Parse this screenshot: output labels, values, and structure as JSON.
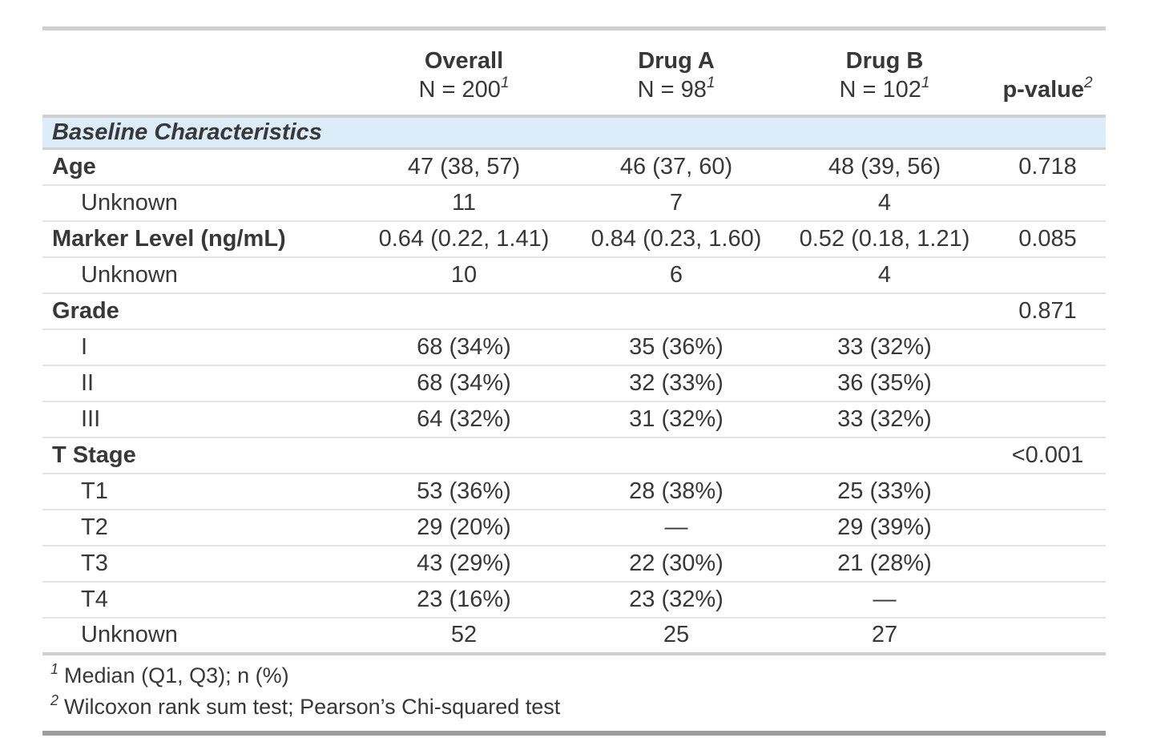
{
  "colors": {
    "text": "#383838",
    "border_light": "#e4e4e4",
    "border_mid": "#d0d0d0",
    "border_dark": "#9d9d9d",
    "group_row_bg": "#ddecf9"
  },
  "table": {
    "header": {
      "columns": [
        {
          "label": "",
          "sublabel": "",
          "footnote_mark": ""
        },
        {
          "label": "Overall",
          "sublabel": "N = 200",
          "footnote_mark": "1"
        },
        {
          "label": "Drug A",
          "sublabel": "N = 98",
          "footnote_mark": "1"
        },
        {
          "label": "Drug B",
          "sublabel": "N = 102",
          "footnote_mark": "1"
        },
        {
          "label": "p-value",
          "sublabel": "",
          "footnote_mark": "2"
        }
      ]
    },
    "group_label": "Baseline Characteristics",
    "rows": [
      {
        "label": "Age",
        "bold": true,
        "indent": false,
        "values": [
          "47 (38, 57)",
          "46 (37, 60)",
          "48 (39, 56)",
          "0.718"
        ]
      },
      {
        "label": "Unknown",
        "bold": false,
        "indent": true,
        "values": [
          "11",
          "7",
          "4",
          ""
        ]
      },
      {
        "label": "Marker Level (ng/mL)",
        "bold": true,
        "indent": false,
        "values": [
          "0.64 (0.22, 1.41)",
          "0.84 (0.23, 1.60)",
          "0.52 (0.18, 1.21)",
          "0.085"
        ]
      },
      {
        "label": "Unknown",
        "bold": false,
        "indent": true,
        "values": [
          "10",
          "6",
          "4",
          ""
        ]
      },
      {
        "label": "Grade",
        "bold": true,
        "indent": false,
        "values": [
          "",
          "",
          "",
          "0.871"
        ]
      },
      {
        "label": "I",
        "bold": false,
        "indent": true,
        "values": [
          "68 (34%)",
          "35 (36%)",
          "33 (32%)",
          ""
        ]
      },
      {
        "label": "II",
        "bold": false,
        "indent": true,
        "values": [
          "68 (34%)",
          "32 (33%)",
          "36 (35%)",
          ""
        ]
      },
      {
        "label": "III",
        "bold": false,
        "indent": true,
        "values": [
          "64 (32%)",
          "31 (32%)",
          "33 (32%)",
          ""
        ]
      },
      {
        "label": "T Stage",
        "bold": true,
        "indent": false,
        "values": [
          "",
          "",
          "",
          "<0.001"
        ]
      },
      {
        "label": "T1",
        "bold": false,
        "indent": true,
        "values": [
          "53 (36%)",
          "28 (38%)",
          "25 (33%)",
          ""
        ]
      },
      {
        "label": "T2",
        "bold": false,
        "indent": true,
        "values": [
          "29 (20%)",
          "—",
          "29 (39%)",
          ""
        ]
      },
      {
        "label": "T3",
        "bold": false,
        "indent": true,
        "values": [
          "43 (29%)",
          "22 (30%)",
          "21 (28%)",
          ""
        ]
      },
      {
        "label": "T4",
        "bold": false,
        "indent": true,
        "values": [
          "23 (16%)",
          "23 (32%)",
          "—",
          ""
        ]
      },
      {
        "label": "Unknown",
        "bold": false,
        "indent": true,
        "values": [
          "52",
          "25",
          "27",
          ""
        ]
      }
    ],
    "footnotes": [
      {
        "mark": "1",
        "text": "Median (Q1, Q3); n (%)"
      },
      {
        "mark": "2",
        "text": "Wilcoxon rank sum test; Pearson’s Chi-squared test"
      }
    ]
  }
}
